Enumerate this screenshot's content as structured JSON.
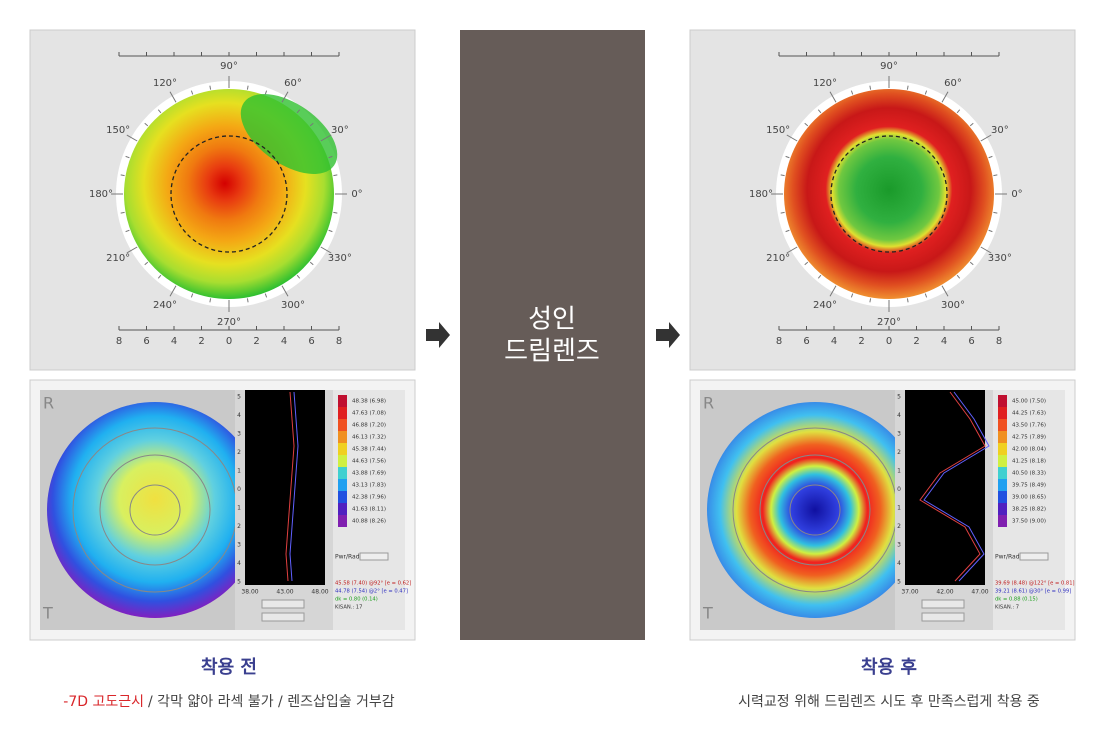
{
  "polar_labels": [
    "90°",
    "60°",
    "30°",
    "0°",
    "330°",
    "300°",
    "270°",
    "240°",
    "210°",
    "180°",
    "150°",
    "120°"
  ],
  "scale_labels": [
    "8",
    "6",
    "4",
    "2",
    "0",
    "2",
    "4",
    "6",
    "8"
  ],
  "center": {
    "line1": "성인",
    "line2": "드림렌즈"
  },
  "before": {
    "topo": {
      "corner_top": "R",
      "corner_bottom": "T",
      "y_axis": [
        "5",
        "4",
        "3",
        "2",
        "1",
        "0",
        "1",
        "2",
        "3",
        "4",
        "5"
      ],
      "x_axis": [
        "38.00",
        "43.00",
        "48.00"
      ],
      "legend": [
        "48.38 (6.98)",
        "47.63 (7.08)",
        "46.88 (7.20)",
        "46.13 (7.32)",
        "45.38 (7.44)",
        "44.63 (7.56)",
        "43.88 (7.69)",
        "43.13 (7.83)",
        "42.38 (7.96)",
        "41.63 (8.11)",
        "40.88 (8.26)"
      ],
      "pwr": "Pwr/Rad",
      "readings": [
        "45.58 (7.40) @92° [e = 0.62]",
        "44.78 (7.54) @2° [e = 0.47]",
        "dk = 0.80 (0.14)",
        "KISAN.: 17"
      ]
    },
    "caption": {
      "title": "착용 전",
      "highlight": "-7D 고도근시",
      "text": "/ 각막 얇아 라섹 불가 / 렌즈삽입술 거부감"
    }
  },
  "after": {
    "topo": {
      "corner_top": "R",
      "corner_bottom": "T",
      "y_axis": [
        "5",
        "4",
        "3",
        "2",
        "1",
        "0",
        "1",
        "2",
        "3",
        "4",
        "5"
      ],
      "x_axis": [
        "37.00",
        "42.00",
        "47.00"
      ],
      "legend": [
        "45.00 (7.50)",
        "44.25 (7.63)",
        "43.50 (7.76)",
        "42.75 (7.89)",
        "42.00 (8.04)",
        "41.25 (8.18)",
        "40.50 (8.33)",
        "39.75 (8.49)",
        "39.00 (8.65)",
        "38.25 (8.82)",
        "37.50 (9.00)"
      ],
      "pwr": "Pwr/Rad",
      "readings": [
        "39.69 (8.48) @122° [e = 0.81]",
        "39.21 (8.61) @30° [e = 0.99]",
        "dk = 0.88 (0.15)",
        "KISAN.: 7"
      ]
    },
    "caption": {
      "title": "착용 후",
      "text": "시력교정 위해 드림렌즈 시도 후 만족스럽게 착용 중"
    }
  }
}
